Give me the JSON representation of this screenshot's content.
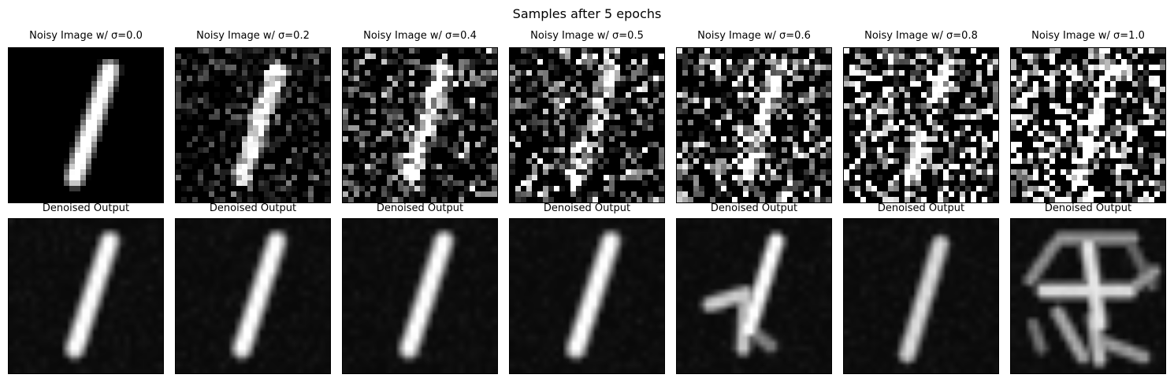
{
  "figure": {
    "title": "Samples after 5 epochs"
  },
  "noisy_row": {
    "panels": [
      {
        "title": "Noisy Image w/ σ=0.0",
        "sigma": 0.0
      },
      {
        "title": "Noisy Image w/ σ=0.2",
        "sigma": 0.2
      },
      {
        "title": "Noisy Image w/ σ=0.4",
        "sigma": 0.4
      },
      {
        "title": "Noisy Image w/ σ=0.5",
        "sigma": 0.5
      },
      {
        "title": "Noisy Image w/ σ=0.6",
        "sigma": 0.6
      },
      {
        "title": "Noisy Image w/ σ=0.8",
        "sigma": 0.8
      },
      {
        "title": "Noisy Image w/ σ=1.0",
        "sigma": 1.0
      }
    ]
  },
  "denoised_row": {
    "panels": [
      {
        "title": "Denoised Output",
        "variant": "clean-digit"
      },
      {
        "title": "Denoised Output",
        "variant": "clean-digit"
      },
      {
        "title": "Denoised Output",
        "variant": "clean-digit"
      },
      {
        "title": "Denoised Output",
        "variant": "clean-digit"
      },
      {
        "title": "Denoised Output",
        "variant": "crossed-digit"
      },
      {
        "title": "Denoised Output",
        "variant": "faint-digit"
      },
      {
        "title": "Denoised Output",
        "variant": "hallucinated-glyph"
      }
    ]
  },
  "image": {
    "colormap": "grayscale",
    "resolution": "28x28"
  }
}
